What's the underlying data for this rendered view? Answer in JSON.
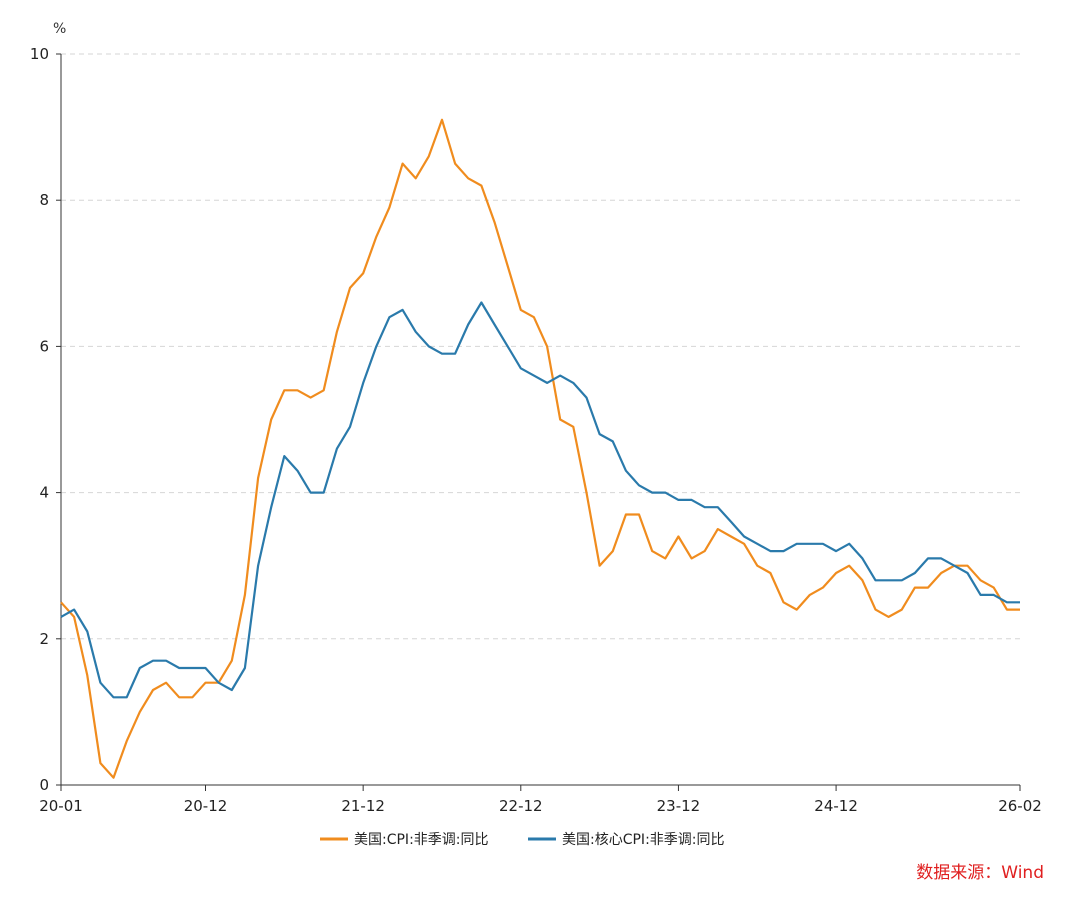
{
  "chart_data": {
    "type": "line",
    "y_unit": "%",
    "ylim": [
      0,
      10
    ],
    "y_ticks": [
      0,
      2,
      4,
      6,
      8,
      10
    ],
    "x_ticks": [
      "20-01",
      "20-12",
      "21-12",
      "22-12",
      "23-12",
      "24-12",
      "26-02"
    ],
    "grid": "horizontal-dashed",
    "legend_position": "bottom-center",
    "x": [
      "20-01",
      "20-02",
      "20-03",
      "20-04",
      "20-05",
      "20-06",
      "20-07",
      "20-08",
      "20-09",
      "20-10",
      "20-11",
      "20-12",
      "21-01",
      "21-02",
      "21-03",
      "21-04",
      "21-05",
      "21-06",
      "21-07",
      "21-08",
      "21-09",
      "21-10",
      "21-11",
      "21-12",
      "22-01",
      "22-02",
      "22-03",
      "22-04",
      "22-05",
      "22-06",
      "22-07",
      "22-08",
      "22-09",
      "22-10",
      "22-11",
      "22-12",
      "23-01",
      "23-02",
      "23-03",
      "23-04",
      "23-05",
      "23-06",
      "23-07",
      "23-08",
      "23-09",
      "23-10",
      "23-11",
      "23-12",
      "24-01",
      "24-02",
      "24-03",
      "24-04",
      "24-05",
      "24-06",
      "24-07",
      "24-08",
      "24-09",
      "24-10",
      "24-11",
      "24-12",
      "25-01",
      "25-02",
      "25-03",
      "25-04",
      "25-05",
      "25-06",
      "25-07",
      "25-08",
      "25-09",
      "25-10",
      "25-11",
      "25-12",
      "26-01",
      "26-02"
    ],
    "series": [
      {
        "name": "美国:CPI:非季调:同比",
        "color": "#f08c1e",
        "values": [
          2.5,
          2.3,
          1.5,
          0.3,
          0.1,
          0.6,
          1.0,
          1.3,
          1.4,
          1.2,
          1.2,
          1.4,
          1.4,
          1.7,
          2.6,
          4.2,
          5.0,
          5.4,
          5.4,
          5.3,
          5.4,
          6.2,
          6.8,
          7.0,
          7.5,
          7.9,
          8.5,
          8.3,
          8.6,
          9.1,
          8.5,
          8.3,
          8.2,
          7.7,
          7.1,
          6.5,
          6.4,
          6.0,
          5.0,
          4.9,
          4.0,
          3.0,
          3.2,
          3.7,
          3.7,
          3.2,
          3.1,
          3.4,
          3.1,
          3.2,
          3.5,
          3.4,
          3.3,
          3.0,
          2.9,
          2.5,
          2.4,
          2.6,
          2.7,
          2.9,
          3.0,
          2.8,
          2.4,
          2.3,
          2.4,
          2.7,
          2.7,
          2.9,
          3.0,
          3.0,
          2.8,
          2.7,
          2.4,
          2.4
        ]
      },
      {
        "name": "美国:核心CPI:非季调:同比",
        "color": "#2a7aab",
        "values": [
          2.3,
          2.4,
          2.1,
          1.4,
          1.2,
          1.2,
          1.6,
          1.7,
          1.7,
          1.6,
          1.6,
          1.6,
          1.4,
          1.3,
          1.6,
          3.0,
          3.8,
          4.5,
          4.3,
          4.0,
          4.0,
          4.6,
          4.9,
          5.5,
          6.0,
          6.4,
          6.5,
          6.2,
          6.0,
          5.9,
          5.9,
          6.3,
          6.6,
          6.3,
          6.0,
          5.7,
          5.6,
          5.5,
          5.6,
          5.5,
          5.3,
          4.8,
          4.7,
          4.3,
          4.1,
          4.0,
          4.0,
          3.9,
          3.9,
          3.8,
          3.8,
          3.6,
          3.4,
          3.3,
          3.2,
          3.2,
          3.3,
          3.3,
          3.3,
          3.2,
          3.3,
          3.1,
          2.8,
          2.8,
          2.8,
          2.9,
          3.1,
          3.1,
          3.0,
          2.9,
          2.6,
          2.6,
          2.5,
          2.5
        ]
      }
    ]
  },
  "source_label": "数据来源：Wind"
}
